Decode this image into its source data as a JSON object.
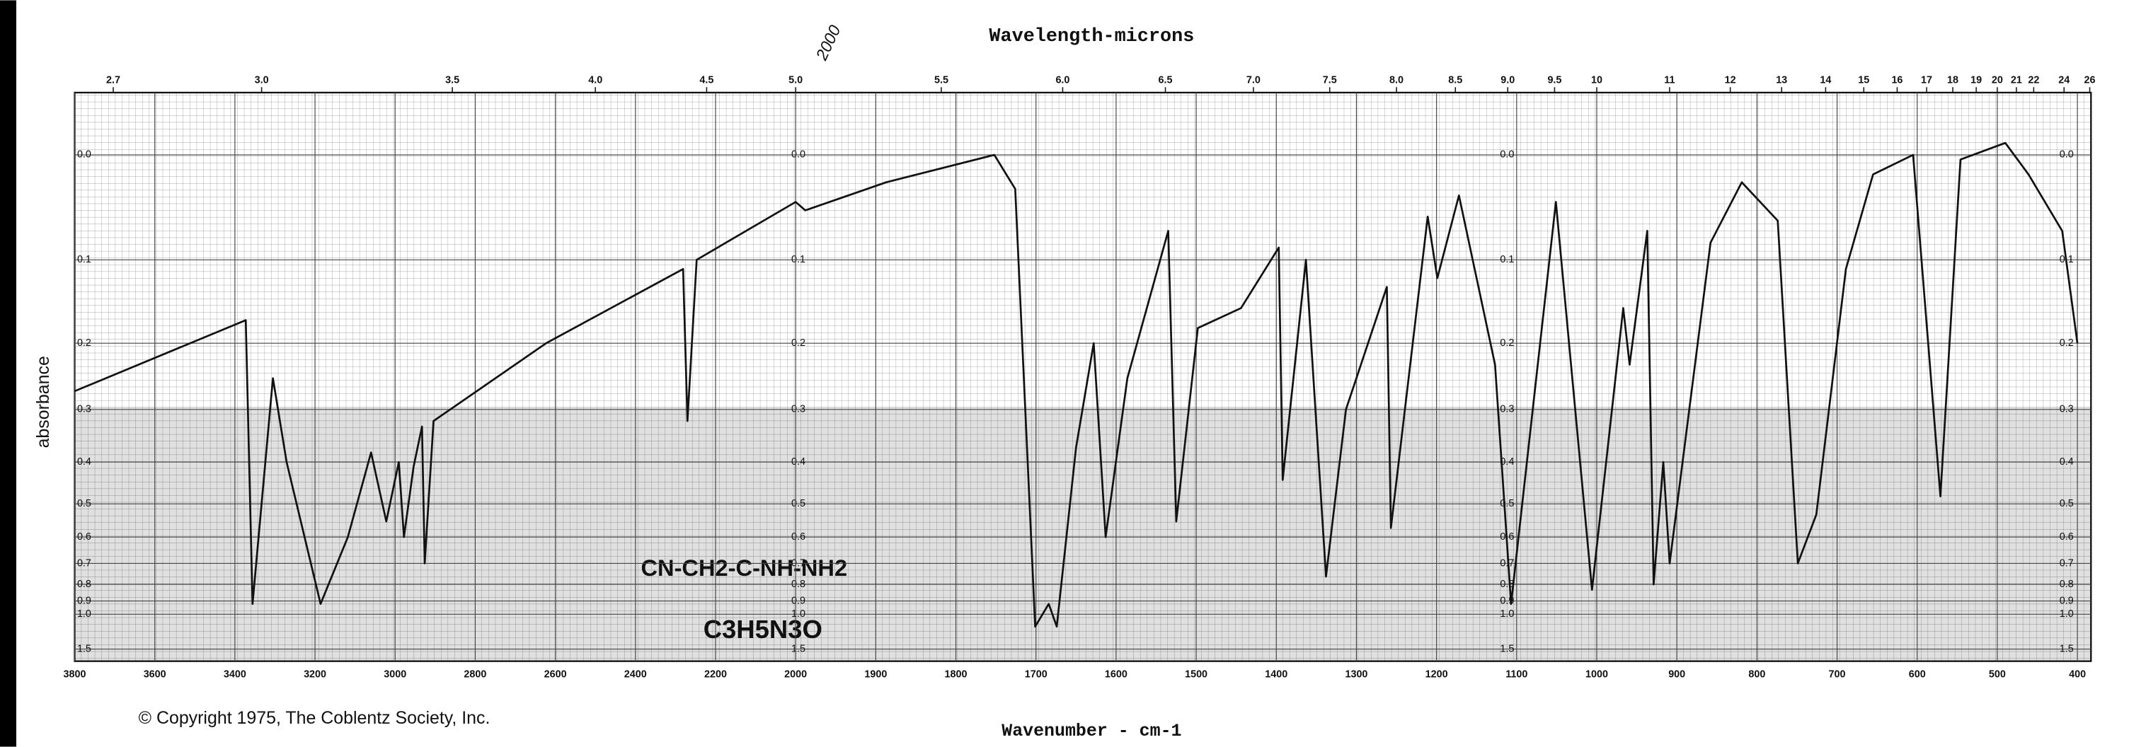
{
  "chart_data": {
    "type": "line",
    "title": "Wavelength-microns",
    "x_label": "Wavenumber - cm-1",
    "y_label": "absorbance",
    "copyright": "© Copyright 1975, The Coblentz Society, Inc.",
    "annotations": [
      "2000",
      "CN-CH2-C-NH-NH2",
      "C3H5N3O"
    ],
    "color": "#111111",
    "grid": true,
    "xlim": [
      3800,
      400
    ],
    "x_scale_change": {
      "at": 2000,
      "ratio": 2
    },
    "xticks": [
      3800,
      3600,
      3400,
      3200,
      3000,
      2800,
      2600,
      2400,
      2200,
      2000,
      1900,
      1800,
      1700,
      1600,
      1500,
      1400,
      1300,
      1200,
      1100,
      1000,
      900,
      800,
      700,
      600,
      500,
      400
    ],
    "top_ticks": [
      {
        "value": 2.7,
        "label": "2.7"
      },
      {
        "value": 3,
        "label": "3.0"
      },
      3.5,
      {
        "value": 4,
        "label": "4.0"
      },
      4.5,
      {
        "value": 5,
        "label": "5.0"
      },
      5.5,
      {
        "value": 6,
        "label": "6.0"
      },
      6.5,
      {
        "value": 7,
        "label": "7.0"
      },
      7.5,
      {
        "value": 8,
        "label": "8.0"
      },
      8.5,
      {
        "value": 9,
        "label": "9.0"
      },
      9.5,
      10,
      11,
      12,
      13,
      14,
      15,
      16,
      17,
      18,
      19,
      20,
      21,
      22,
      24,
      26
    ],
    "y_scale": "transmittance",
    "ylim": [
      2.1,
      -0.05
    ],
    "yticks": [
      {
        "value": 0,
        "label": "0.0"
      },
      0.1,
      0.2,
      0.3,
      0.4,
      0.5,
      0.6,
      0.7,
      0.8,
      0.9,
      {
        "value": 1,
        "label": "1.0"
      },
      1.5
    ],
    "x": [
      3800,
      3373,
      3356,
      3305,
      3271,
      3186,
      3118,
      3060,
      3022,
      2991,
      2978,
      2954,
      2933,
      2926,
      2904,
      2623,
      2281,
      2270,
      2247,
      2000,
      1988,
      1887,
      1752,
      1726,
      1701,
      1684,
      1674,
      1650,
      1628,
      1613,
      1586,
      1535,
      1525,
      1498,
      1444,
      1397,
      1392,
      1363,
      1338,
      1313,
      1262,
      1257,
      1211,
      1199,
      1172,
      1127,
      1107,
      1051,
      1006,
      967,
      959,
      937,
      929,
      917,
      909,
      858,
      819,
      774,
      749,
      726,
      689,
      655,
      605,
      571,
      546,
      490,
      461,
      419,
      400
    ],
    "values": [
      0.27,
      0.17,
      0.92,
      0.25,
      0.4,
      0.92,
      0.6,
      0.38,
      0.55,
      0.4,
      0.6,
      0.41,
      0.33,
      0.7,
      0.32,
      0.2,
      0.11,
      0.32,
      0.1,
      0.042,
      0.05,
      0.024,
      0,
      0.03,
      1.12,
      0.92,
      1.12,
      0.37,
      0.2,
      0.6,
      0.25,
      0.07,
      0.55,
      0.18,
      0.155,
      0.087,
      0.44,
      0.1,
      0.76,
      0.3,
      0.13,
      0.57,
      0.056,
      0.12,
      0.036,
      0.23,
      0.92,
      0.042,
      0.83,
      0.155,
      0.23,
      0.07,
      0.8,
      0.4,
      0.7,
      0.082,
      0.024,
      0.06,
      0.7,
      0.53,
      0.11,
      0.017,
      0,
      0.48,
      0.004,
      -0.01,
      0.017,
      0.07,
      0.2
    ]
  }
}
